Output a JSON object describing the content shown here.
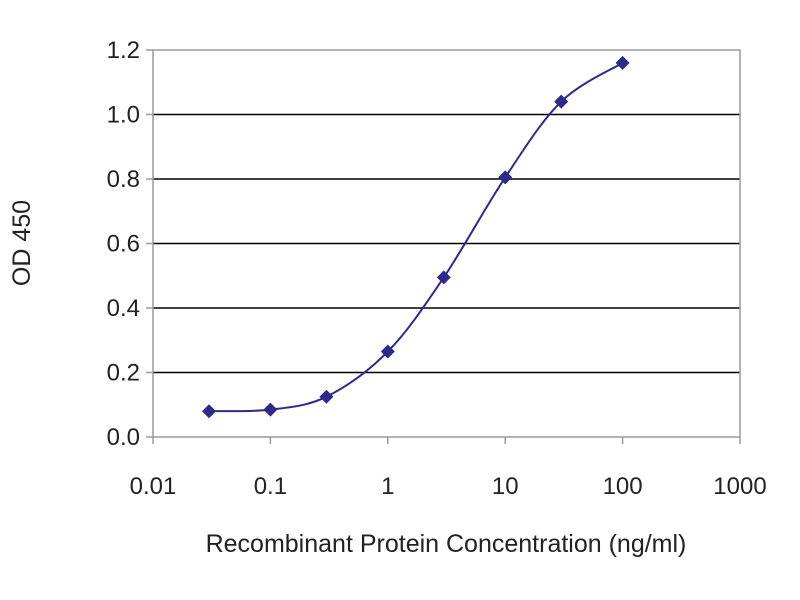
{
  "chart_data": {
    "type": "line",
    "title": "",
    "xlabel": "Recombinant Protein Concentration (ng/ml)",
    "ylabel": "OD 450",
    "x_scale": "log",
    "xlim": [
      0.01,
      1000
    ],
    "ylim": [
      0.0,
      1.2
    ],
    "x_tick_values": [
      0.01,
      0.1,
      1,
      10,
      100,
      1000
    ],
    "x_tick_labels": [
      "0.01",
      "0.1",
      "1",
      "10",
      "100",
      "1000"
    ],
    "y_tick_values": [
      0.0,
      0.2,
      0.4,
      0.6,
      0.8,
      1.0,
      1.2
    ],
    "y_tick_labels": [
      "0.0",
      "0.2",
      "0.4",
      "0.6",
      "0.8",
      "1.0",
      "1.2"
    ],
    "grid": "horizontal",
    "legend": "none",
    "colors": {
      "series": "#2e2a8c",
      "grid": "#000000",
      "frame": "#9a9a9a"
    },
    "series": [
      {
        "x": [
          0.03,
          0.1,
          0.3,
          1,
          3,
          10,
          30,
          100
        ],
        "y": [
          0.08,
          0.085,
          0.125,
          0.265,
          0.495,
          0.805,
          1.04,
          1.16
        ]
      }
    ]
  }
}
